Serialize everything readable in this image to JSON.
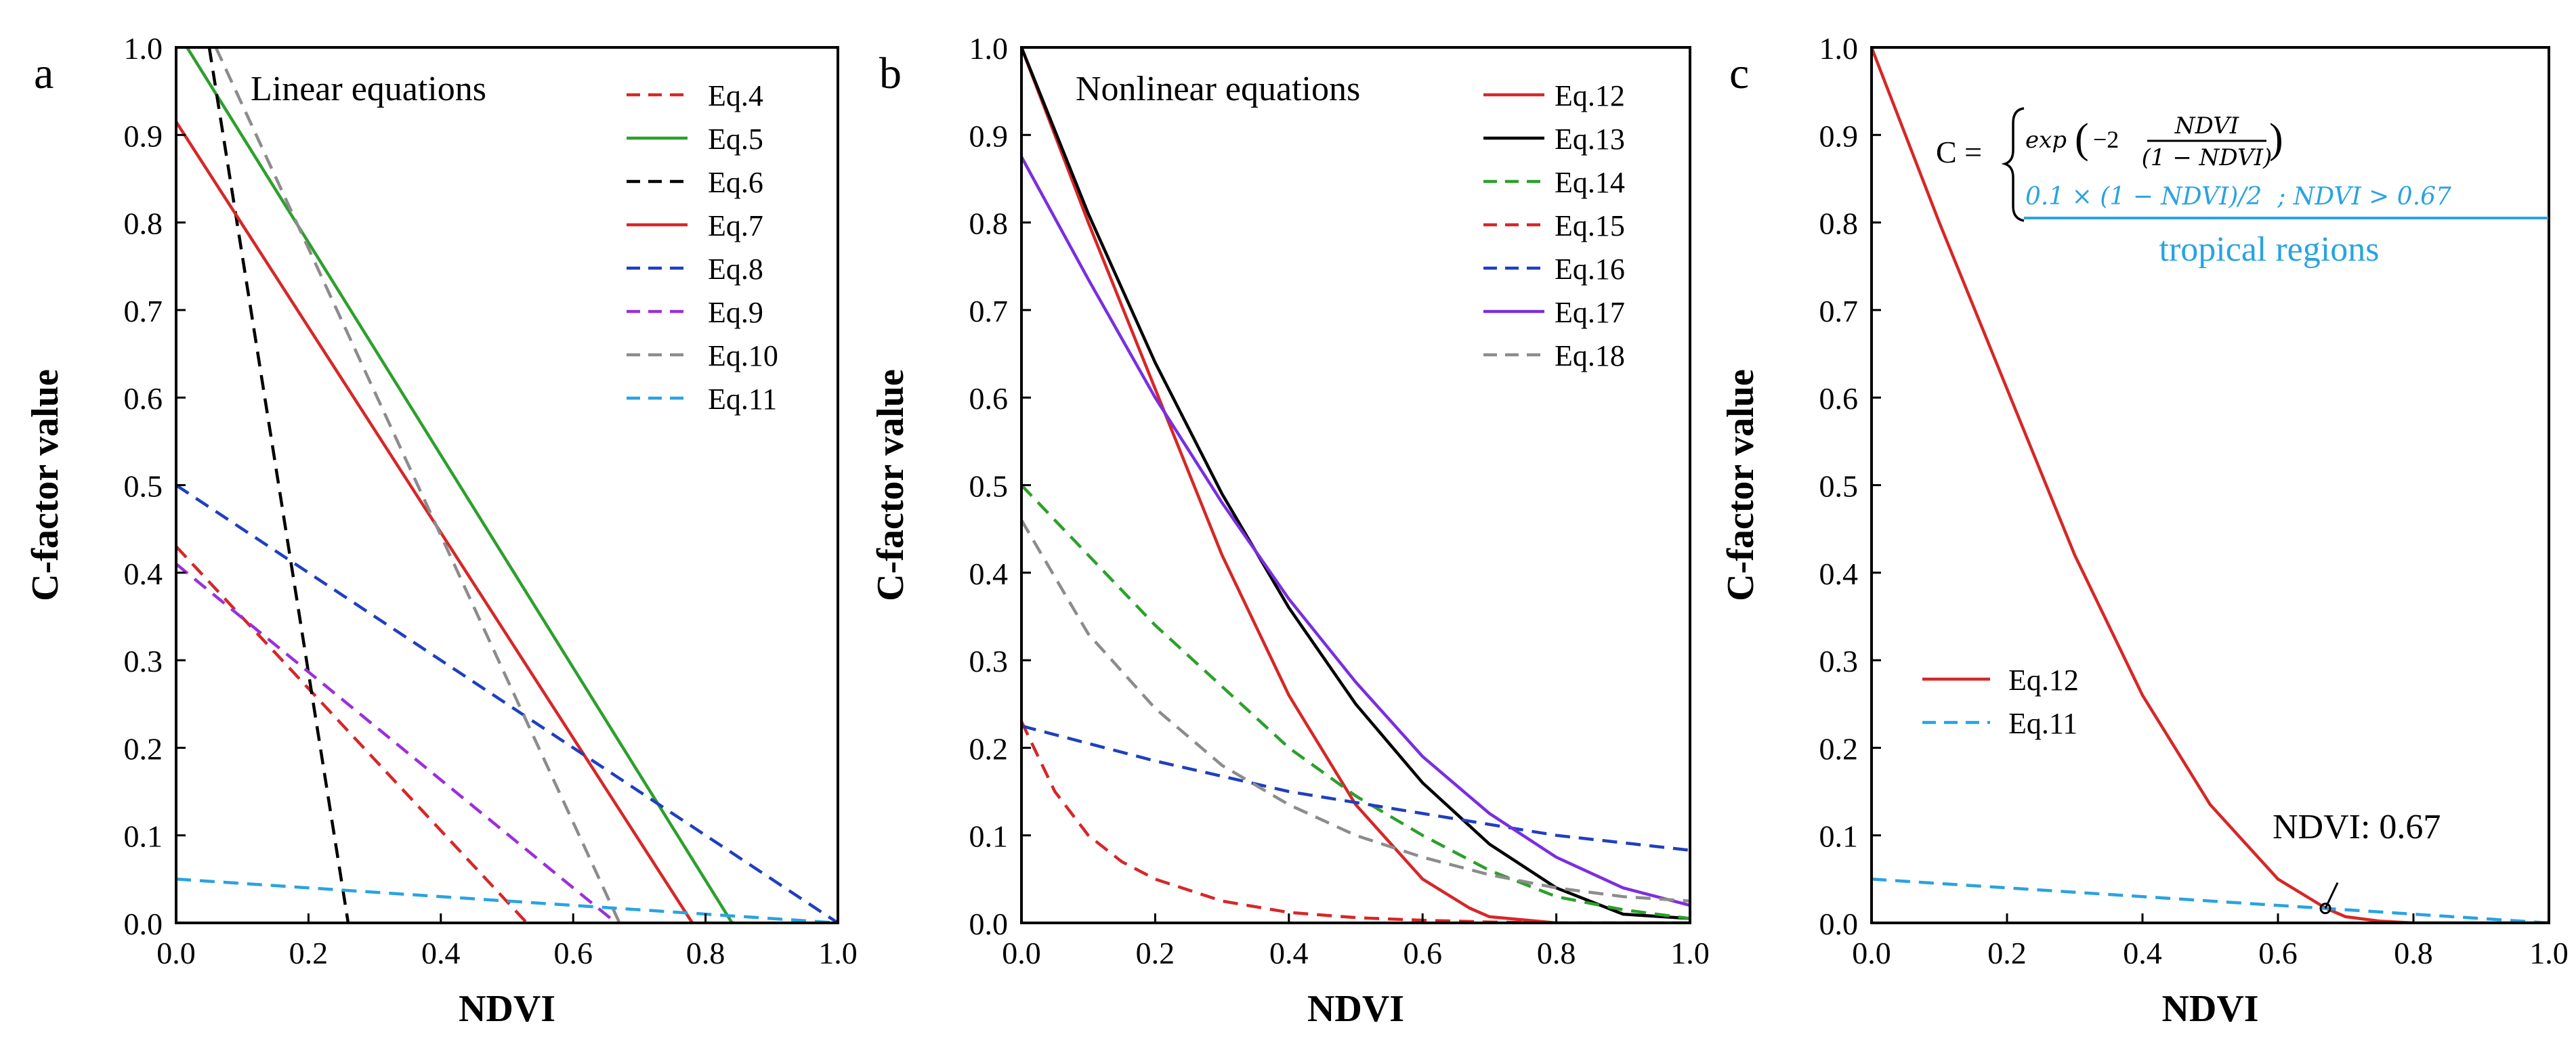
{
  "chart_data": [
    {
      "type": "line",
      "panel_label": "a",
      "title": "Linear equations",
      "xlabel": "NDVI",
      "ylabel": "C-factor value",
      "xlim": [
        0,
        1
      ],
      "ylim": [
        0,
        1
      ],
      "xticks": [
        "0.0",
        "0.2",
        "0.4",
        "0.6",
        "0.8",
        "1.0"
      ],
      "yticks": [
        "0.0",
        "0.1",
        "0.2",
        "0.3",
        "0.4",
        "0.5",
        "0.6",
        "0.7",
        "0.8",
        "0.9",
        "1.0"
      ],
      "grid": false,
      "legend_position": "top-right",
      "series": [
        {
          "name": "Eq.4",
          "color": "#d62728",
          "dash": "dashed",
          "x": [
            0.0,
            0.53
          ],
          "y": [
            0.43,
            0.0
          ]
        },
        {
          "name": "Eq.5",
          "color": "#2ca02c",
          "dash": "solid",
          "x": [
            0.0,
            0.84
          ],
          "y": [
            1.02,
            0.0
          ]
        },
        {
          "name": "Eq.6",
          "color": "#000000",
          "dash": "dashed",
          "x": [
            0.05,
            0.26
          ],
          "y": [
            1.0,
            0.0
          ]
        },
        {
          "name": "Eq.7",
          "color": "#d62728",
          "dash": "solid",
          "x": [
            0.0,
            0.78
          ],
          "y": [
            0.915,
            0.0
          ]
        },
        {
          "name": "Eq.8",
          "color": "#1f3fbf",
          "dash": "dashed",
          "x": [
            0.0,
            1.0
          ],
          "y": [
            0.5,
            0.0
          ]
        },
        {
          "name": "Eq.9",
          "color": "#9b30d9",
          "dash": "dashed",
          "x": [
            0.0,
            0.665
          ],
          "y": [
            0.41,
            0.0
          ]
        },
        {
          "name": "Eq.10",
          "color": "#8c8c8c",
          "dash": "dashed",
          "x": [
            0.06,
            0.67
          ],
          "y": [
            1.0,
            0.0
          ]
        },
        {
          "name": "Eq.11",
          "color": "#29a3e0",
          "dash": "dashed",
          "x": [
            0.0,
            1.0
          ],
          "y": [
            0.05,
            0.0
          ]
        }
      ]
    },
    {
      "type": "line",
      "panel_label": "b",
      "title": "Nonlinear equations",
      "xlabel": "NDVI",
      "ylabel": "C-factor value",
      "xlim": [
        0,
        1
      ],
      "ylim": [
        0,
        1
      ],
      "xticks": [
        "0.0",
        "0.2",
        "0.4",
        "0.6",
        "0.8",
        "1.0"
      ],
      "yticks": [
        "0.0",
        "0.1",
        "0.2",
        "0.3",
        "0.4",
        "0.5",
        "0.6",
        "0.7",
        "0.8",
        "0.9",
        "1.0"
      ],
      "grid": false,
      "legend_position": "top-right",
      "series": [
        {
          "name": "Eq.12",
          "color": "#d62728",
          "dash": "solid",
          "x": [
            0.0,
            0.1,
            0.2,
            0.3,
            0.4,
            0.5,
            0.6,
            0.67,
            0.7,
            0.8,
            0.9,
            1.0
          ],
          "y": [
            1.0,
            0.8,
            0.61,
            0.42,
            0.26,
            0.135,
            0.05,
            0.017,
            0.007,
            0.0,
            0.0,
            0.0
          ]
        },
        {
          "name": "Eq.13",
          "color": "#000000",
          "dash": "solid",
          "x": [
            0.0,
            0.1,
            0.2,
            0.3,
            0.4,
            0.5,
            0.6,
            0.7,
            0.8,
            0.9,
            1.0
          ],
          "y": [
            1.0,
            0.81,
            0.64,
            0.49,
            0.36,
            0.25,
            0.16,
            0.09,
            0.04,
            0.01,
            0.005
          ]
        },
        {
          "name": "Eq.14",
          "color": "#2ca02c",
          "dash": "dashed",
          "x": [
            0.0,
            0.1,
            0.2,
            0.3,
            0.4,
            0.5,
            0.6,
            0.7,
            0.8,
            0.9,
            1.0
          ],
          "y": [
            0.5,
            0.42,
            0.34,
            0.27,
            0.2,
            0.145,
            0.1,
            0.06,
            0.03,
            0.015,
            0.005
          ]
        },
        {
          "name": "Eq.15",
          "color": "#d62728",
          "dash": "dashed",
          "x": [
            0.0,
            0.05,
            0.1,
            0.15,
            0.2,
            0.3,
            0.4,
            0.5,
            0.6,
            0.7,
            0.8,
            1.0
          ],
          "y": [
            0.23,
            0.15,
            0.1,
            0.07,
            0.05,
            0.025,
            0.012,
            0.006,
            0.003,
            0.001,
            0.0,
            0.0
          ]
        },
        {
          "name": "Eq.16",
          "color": "#1f3fbf",
          "dash": "dashed",
          "x": [
            0.0,
            0.2,
            0.4,
            0.6,
            0.8,
            1.0
          ],
          "y": [
            0.225,
            0.185,
            0.15,
            0.125,
            0.1,
            0.083
          ]
        },
        {
          "name": "Eq.17",
          "color": "#7a2ee0",
          "dash": "solid",
          "x": [
            0.0,
            0.1,
            0.2,
            0.3,
            0.4,
            0.5,
            0.6,
            0.7,
            0.8,
            0.9,
            1.0
          ],
          "y": [
            0.875,
            0.735,
            0.6,
            0.48,
            0.37,
            0.275,
            0.19,
            0.125,
            0.075,
            0.04,
            0.02
          ]
        },
        {
          "name": "Eq.18",
          "color": "#8c8c8c",
          "dash": "dashed",
          "x": [
            0.0,
            0.1,
            0.2,
            0.3,
            0.4,
            0.5,
            0.6,
            0.7,
            0.8,
            0.9,
            1.0
          ],
          "y": [
            0.46,
            0.33,
            0.245,
            0.18,
            0.135,
            0.1,
            0.075,
            0.055,
            0.04,
            0.03,
            0.025
          ]
        }
      ]
    },
    {
      "type": "line",
      "panel_label": "c",
      "xlabel": "NDVI",
      "ylabel": "C-factor value",
      "xlim": [
        0,
        1
      ],
      "ylim": [
        0,
        1
      ],
      "xticks": [
        "0.0",
        "0.2",
        "0.4",
        "0.6",
        "0.8",
        "1.0"
      ],
      "yticks": [
        "0.0",
        "0.1",
        "0.2",
        "0.3",
        "0.4",
        "0.5",
        "0.6",
        "0.7",
        "0.8",
        "0.9",
        "1.0"
      ],
      "grid": false,
      "legend_position": "middle-left",
      "series": [
        {
          "name": "Eq.12",
          "color": "#d62728",
          "dash": "solid",
          "x": [
            0.0,
            0.1,
            0.2,
            0.3,
            0.4,
            0.5,
            0.6,
            0.67,
            0.7,
            0.75,
            0.8,
            0.9,
            1.0
          ],
          "y": [
            1.0,
            0.8,
            0.61,
            0.42,
            0.26,
            0.135,
            0.05,
            0.017,
            0.007,
            0.002,
            0.0,
            0.0,
            0.0
          ]
        },
        {
          "name": "Eq.11",
          "color": "#29a3e0",
          "dash": "dashed",
          "x": [
            0.0,
            1.0
          ],
          "y": [
            0.05,
            0.0
          ]
        }
      ],
      "annotations": {
        "intersection_label": "NDVI: 0.67",
        "intersection_x": 0.67,
        "intersection_y": 0.0165,
        "formula_lhs": "C =",
        "formula_upper": "exp(−2 NDVI/(1 − NDVI))",
        "formula_upper_prefix": "exp",
        "formula_upper_coef": "−2",
        "formula_upper_num": "NDVI",
        "formula_upper_den": "(1 − NDVI)",
        "formula_lower": "0.1 × (1 − NDVI)/2  ; NDVI > 0.67",
        "formula_lower_note": "tropical regions",
        "formula_lower_color": "#29a3e0"
      }
    }
  ]
}
